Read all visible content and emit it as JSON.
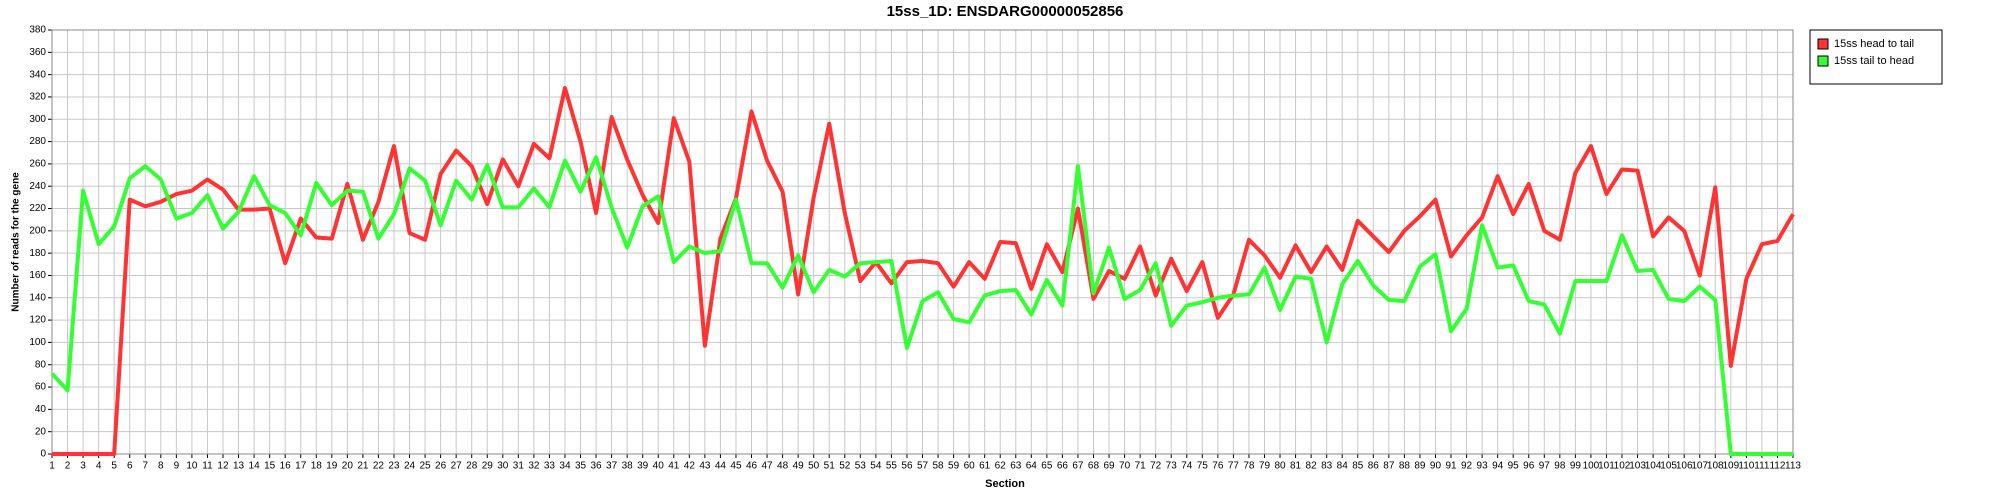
{
  "chart_data": {
    "type": "line",
    "title": "15ss_1D: ENSDARG00000052856",
    "x_label": "Section",
    "y_label": "Number of reads for the gene",
    "x": [
      1,
      2,
      3,
      4,
      5,
      6,
      7,
      8,
      9,
      10,
      11,
      12,
      13,
      14,
      15,
      16,
      17,
      18,
      19,
      20,
      21,
      22,
      23,
      24,
      25,
      26,
      27,
      28,
      29,
      30,
      31,
      32,
      33,
      34,
      35,
      36,
      37,
      38,
      39,
      40,
      41,
      42,
      43,
      44,
      45,
      46,
      47,
      48,
      49,
      50,
      51,
      52,
      53,
      54,
      55,
      56,
      57,
      58,
      59,
      60,
      61,
      62,
      63,
      64,
      65,
      66,
      67,
      68,
      69,
      70,
      71,
      72,
      73,
      74,
      75,
      76,
      77,
      78,
      79,
      80,
      81,
      82,
      83,
      84,
      85,
      86,
      87,
      88,
      89,
      90,
      91,
      92,
      93,
      94,
      95,
      96,
      97,
      98,
      99,
      100,
      101,
      102,
      103,
      104,
      105,
      106,
      107,
      108,
      109,
      110,
      111,
      112,
      113
    ],
    "xlim": [
      1,
      113
    ],
    "xticks": [
      1,
      2,
      3,
      4,
      5,
      6,
      7,
      8,
      9,
      10,
      11,
      12,
      13,
      14,
      15,
      16,
      17,
      18,
      19,
      20,
      21,
      22,
      23,
      24,
      25,
      26,
      27,
      28,
      29,
      30,
      31,
      32,
      33,
      34,
      35,
      36,
      37,
      38,
      39,
      40,
      41,
      42,
      43,
      44,
      45,
      46,
      47,
      48,
      49,
      50,
      51,
      52,
      53,
      54,
      55,
      56,
      57,
      58,
      59,
      60,
      61,
      62,
      63,
      64,
      65,
      66,
      67,
      68,
      69,
      70,
      71,
      72,
      73,
      74,
      75,
      76,
      77,
      78,
      79,
      80,
      81,
      82,
      83,
      84,
      85,
      86,
      87,
      88,
      89,
      90,
      91,
      92,
      93,
      94,
      95,
      96,
      97,
      98,
      99,
      100,
      101,
      102,
      103,
      104,
      105,
      106,
      107,
      108,
      109,
      110,
      111,
      112,
      113
    ],
    "ylim": [
      0,
      380
    ],
    "yticks": [
      0,
      20,
      40,
      60,
      80,
      100,
      120,
      140,
      160,
      180,
      200,
      220,
      240,
      260,
      280,
      300,
      320,
      340,
      360,
      380
    ],
    "grid": true,
    "legend": "outside-top-right",
    "series": [
      {
        "name": "15ss head to tail",
        "color": "#ff3333",
        "values": [
          0,
          0,
          0,
          0,
          0,
          228,
          222,
          226,
          233,
          236,
          246,
          237,
          219,
          219,
          220,
          171,
          211,
          194,
          193,
          242,
          192,
          226,
          276,
          198,
          192,
          251,
          272,
          258,
          224,
          264,
          240,
          278,
          265,
          328,
          280,
          216,
          302,
          264,
          232,
          207,
          301,
          262,
          97,
          193,
          229,
          307,
          263,
          235,
          143,
          230,
          296,
          216,
          155,
          172,
          153,
          172,
          173,
          171,
          150,
          172,
          157,
          190,
          189,
          148,
          188,
          163,
          220,
          139,
          164,
          157,
          186,
          142,
          175,
          146,
          172,
          122,
          143,
          192,
          178,
          158,
          187,
          163,
          186,
          165,
          209,
          195,
          181,
          200,
          213,
          228,
          177,
          196,
          212,
          249,
          215,
          242,
          200,
          192,
          252,
          276,
          233,
          255,
          254,
          195,
          212,
          200,
          160,
          239,
          79,
          157,
          188,
          191,
          215
        ]
      },
      {
        "name": "15ss tail to head",
        "color": "#33ff33",
        "values": [
          72,
          57,
          236,
          188,
          204,
          247,
          258,
          246,
          211,
          216,
          232,
          202,
          217,
          249,
          223,
          216,
          196,
          243,
          223,
          236,
          235,
          193,
          215,
          256,
          245,
          205,
          245,
          228,
          259,
          221,
          221,
          238,
          221,
          263,
          235,
          266,
          221,
          185,
          222,
          231,
          172,
          186,
          180,
          182,
          228,
          171,
          171,
          149,
          178,
          145,
          165,
          159,
          171,
          172,
          173,
          95,
          137,
          145,
          121,
          118,
          142,
          146,
          147,
          125,
          156,
          133,
          258,
          144,
          185,
          139,
          147,
          171,
          115,
          133,
          136,
          140,
          142,
          143,
          167,
          129,
          159,
          157,
          100,
          152,
          173,
          151,
          138,
          137,
          168,
          179,
          110,
          130,
          205,
          167,
          169,
          137,
          134,
          108,
          155,
          155,
          155,
          196,
          164,
          165,
          139,
          137,
          150,
          138,
          0,
          0,
          0,
          0,
          0
        ]
      }
    ]
  }
}
